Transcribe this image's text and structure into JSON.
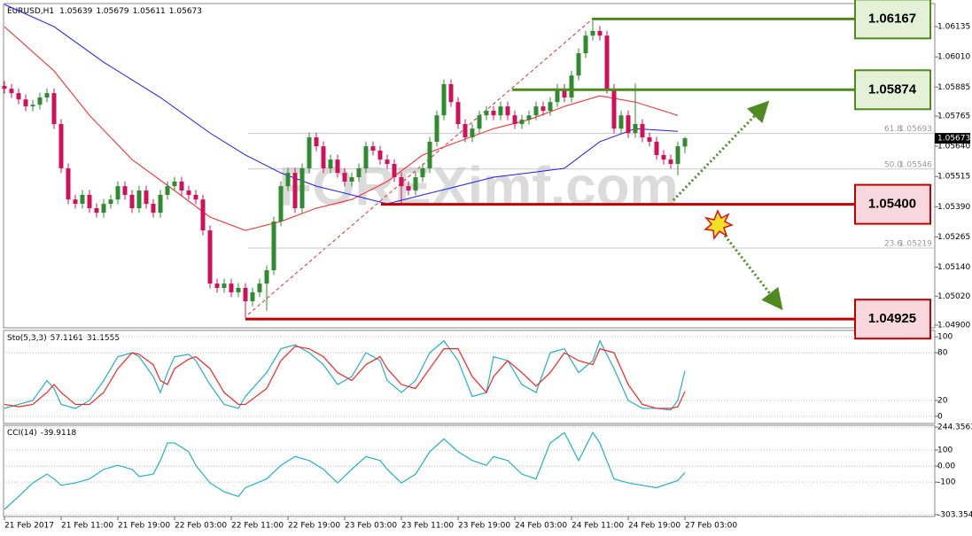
{
  "chart_data": {
    "type": "candlestick",
    "symbol": "EURUSD,H1",
    "watermark": "FOREXimf.com",
    "up_color": "#2e8b2e",
    "down_color": "#d0105a",
    "xlim": [
      -0.125,
      131.25
    ],
    "xticks": [
      {
        "value": 0,
        "label": "21 Feb 2017"
      },
      {
        "value": 8,
        "label": "21 Feb 11:00"
      },
      {
        "value": 16,
        "label": "21 Feb 19:00"
      },
      {
        "value": 24,
        "label": "22 Feb 03:00"
      },
      {
        "value": 32,
        "label": "22 Feb 11:00"
      },
      {
        "value": 40,
        "label": "22 Feb 19:00"
      },
      {
        "value": 48,
        "label": "23 Feb 03:00"
      },
      {
        "value": 56,
        "label": "23 Feb 11:00"
      },
      {
        "value": 64,
        "label": "23 Feb 19:00"
      },
      {
        "value": 72,
        "label": "24 Feb 03:00"
      },
      {
        "value": 80,
        "label": "24 Feb 11:00"
      },
      {
        "value": 88,
        "label": "24 Feb 19:00"
      },
      {
        "value": 96,
        "label": "27 Feb 03:00"
      }
    ],
    "ylim": [
      1.04889,
      1.06227
    ],
    "yticks": [
      1.06135,
      {
        "value": 1.0601,
        "label": "1.06010"
      },
      1.05885,
      1.05765,
      {
        "value": 1.0564,
        "label": "1.05640"
      },
      1.05515,
      {
        "value": 1.0539,
        "label": "1.05390"
      },
      1.05265,
      {
        "value": 1.0514,
        "label": "1.05140"
      },
      {
        "value": 1.0502,
        "label": "1.05020"
      },
      {
        "value": 1.049,
        "label": "1.04900"
      }
    ],
    "candles": [
      [
        1.0589,
        1.0591,
        1.05858,
        1.05878
      ],
      [
        1.05878,
        1.05898,
        1.0584,
        1.0586
      ],
      [
        1.0586,
        1.0588,
        1.05814,
        1.05834
      ],
      [
        1.05834,
        1.05854,
        1.05785,
        1.05805
      ],
      [
        1.05805,
        1.05832,
        1.05785,
        1.05812
      ],
      [
        1.05812,
        1.05862,
        1.05792,
        1.05842
      ],
      [
        1.05842,
        1.0588,
        1.05822,
        1.0586
      ],
      [
        1.0586,
        1.0588,
        1.05712,
        1.05732
      ],
      [
        1.05732,
        1.05752,
        1.05529,
        1.05549
      ],
      [
        1.05549,
        1.05569,
        1.054,
        1.0542
      ],
      [
        1.0542,
        1.0544,
        1.05382,
        1.05402
      ],
      [
        1.05402,
        1.05459,
        1.05382,
        1.05439
      ],
      [
        1.05439,
        1.05459,
        1.05364,
        1.05384
      ],
      [
        1.05384,
        1.05404,
        1.05345,
        1.05365
      ],
      [
        1.05365,
        1.05422,
        1.05345,
        1.05402
      ],
      [
        1.05402,
        1.0544,
        1.05382,
        1.0542
      ],
      [
        1.0542,
        1.05495,
        1.054,
        1.05475
      ],
      [
        1.05475,
        1.05495,
        1.05419,
        1.05439
      ],
      [
        1.05439,
        1.05459,
        1.05364,
        1.05384
      ],
      [
        1.05384,
        1.05477,
        1.05364,
        1.05457
      ],
      [
        1.05457,
        1.05477,
        1.05382,
        1.05402
      ],
      [
        1.05402,
        1.05422,
        1.05345,
        1.05365
      ],
      [
        1.05365,
        1.05459,
        1.05345,
        1.05439
      ],
      [
        1.05439,
        1.05495,
        1.05419,
        1.05475
      ],
      [
        1.05475,
        1.05514,
        1.05455,
        1.05494
      ],
      [
        1.05494,
        1.05514,
        1.05437,
        1.05457
      ],
      [
        1.05457,
        1.05477,
        1.05419,
        1.05439
      ],
      [
        1.05439,
        1.05459,
        1.054,
        1.0542
      ],
      [
        1.0542,
        1.0544,
        1.05272,
        1.05292
      ],
      [
        1.05292,
        1.05312,
        1.05052,
        1.05072
      ],
      [
        1.05072,
        1.05092,
        1.05034,
        1.05054
      ],
      [
        1.05054,
        1.05092,
        1.05034,
        1.05072
      ],
      [
        1.05072,
        1.05092,
        1.05016,
        1.05036
      ],
      [
        1.05036,
        1.05074,
        1.05016,
        1.05054
      ],
      [
        1.05054,
        1.05074,
        1.0493,
        1.04999
      ],
      [
        1.04999,
        1.05056,
        1.04979,
        1.05036
      ],
      [
        1.05036,
        1.05092,
        1.05016,
        1.05072
      ],
      [
        1.05072,
        1.05147,
        1.0496,
        1.05127
      ],
      [
        1.05127,
        1.05349,
        1.05107,
        1.05329
      ],
      [
        1.05329,
        1.05495,
        1.05309,
        1.05475
      ],
      [
        1.05475,
        1.0555,
        1.05455,
        1.0553
      ],
      [
        1.0553,
        1.0555,
        1.05364,
        1.05384
      ],
      [
        1.05384,
        1.05569,
        1.05364,
        1.05549
      ],
      [
        1.05549,
        1.05697,
        1.05529,
        1.05677
      ],
      [
        1.05677,
        1.05697,
        1.0562,
        1.0564
      ],
      [
        1.0564,
        1.0566,
        1.05529,
        1.05549
      ],
      [
        1.05549,
        1.05605,
        1.05529,
        1.05585
      ],
      [
        1.05585,
        1.05605,
        1.0551,
        1.0553
      ],
      [
        1.0553,
        1.0555,
        1.05474,
        1.05494
      ],
      [
        1.05494,
        1.05532,
        1.05474,
        1.05512
      ],
      [
        1.05512,
        1.05569,
        1.05492,
        1.05549
      ],
      [
        1.05549,
        1.0566,
        1.05529,
        1.0564
      ],
      [
        1.0564,
        1.0566,
        1.05602,
        1.05622
      ],
      [
        1.05622,
        1.05642,
        1.05565,
        1.05585
      ],
      [
        1.05585,
        1.05605,
        1.05547,
        1.05567
      ],
      [
        1.05567,
        1.05587,
        1.05492,
        1.05512
      ],
      [
        1.05512,
        1.05532,
        1.054,
        1.05475
      ],
      [
        1.05475,
        1.05495,
        1.05437,
        1.05457
      ],
      [
        1.05457,
        1.05532,
        1.05437,
        1.05512
      ],
      [
        1.05512,
        1.05569,
        1.05492,
        1.05549
      ],
      [
        1.05549,
        1.05679,
        1.05529,
        1.05659
      ],
      [
        1.05659,
        1.05788,
        1.05639,
        1.05768
      ],
      [
        1.05768,
        1.05917,
        1.05748,
        1.05897
      ],
      [
        1.05897,
        1.05917,
        1.05803,
        1.05823
      ],
      [
        1.05823,
        1.05843,
        1.05712,
        1.05732
      ],
      [
        1.05732,
        1.05752,
        1.05657,
        1.05677
      ],
      [
        1.05677,
        1.05733,
        1.05657,
        1.05713
      ],
      [
        1.05713,
        1.05788,
        1.05693,
        1.05768
      ],
      [
        1.05768,
        1.05807,
        1.05748,
        1.05787
      ],
      [
        1.05787,
        1.05807,
        1.05748,
        1.05768
      ],
      [
        1.05768,
        1.05825,
        1.05748,
        1.05805
      ],
      [
        1.05805,
        1.05825,
        1.05748,
        1.05768
      ],
      [
        1.05768,
        1.05788,
        1.05712,
        1.05732
      ],
      [
        1.05732,
        1.0577,
        1.05712,
        1.0575
      ],
      [
        1.0575,
        1.05788,
        1.0573,
        1.05768
      ],
      [
        1.05768,
        1.05825,
        1.05748,
        1.05805
      ],
      [
        1.05805,
        1.05825,
        1.05767,
        1.05787
      ],
      [
        1.05787,
        1.05843,
        1.05767,
        1.05823
      ],
      [
        1.05823,
        1.05898,
        1.05803,
        1.05878
      ],
      [
        1.05878,
        1.05898,
        1.05822,
        1.05842
      ],
      [
        1.05842,
        1.05953,
        1.05822,
        1.05933
      ],
      [
        1.05933,
        1.06045,
        1.05913,
        1.06025
      ],
      [
        1.06025,
        1.06118,
        1.06005,
        1.06098
      ],
      [
        1.06098,
        1.0616,
        1.06078,
        1.06117
      ],
      [
        1.06117,
        1.06137,
        1.06078,
        1.06098
      ],
      [
        1.06098,
        1.06118,
        1.05858,
        1.05878
      ],
      [
        1.05878,
        1.05898,
        1.05693,
        1.05713
      ],
      [
        1.05713,
        1.05788,
        1.05693,
        1.05768
      ],
      [
        1.05768,
        1.05788,
        1.05675,
        1.05695
      ],
      [
        1.05695,
        1.059,
        1.05675,
        1.05732
      ],
      [
        1.05732,
        1.05752,
        1.05657,
        1.05677
      ],
      [
        1.05677,
        1.05697,
        1.05639,
        1.05659
      ],
      [
        1.05659,
        1.05679,
        1.05584,
        1.05604
      ],
      [
        1.05604,
        1.05624,
        1.05565,
        1.05585
      ],
      [
        1.05585,
        1.05605,
        1.05547,
        1.05567
      ],
      [
        1.05567,
        1.0566,
        1.0552,
        1.0564
      ],
      [
        1.05639,
        1.05679,
        1.05611,
        1.05673
      ]
    ],
    "moving_averages": [
      {
        "color": "#ff2020",
        "x": [
          0,
          7,
          12,
          18,
          24,
          29,
          34,
          39,
          44,
          49,
          54,
          59,
          64,
          69,
          74,
          79,
          84,
          89,
          95
        ],
        "values": [
          1.06135,
          1.05952,
          1.05768,
          1.05585,
          1.05457,
          1.05347,
          1.05292,
          1.05329,
          1.05384,
          1.0542,
          1.05494,
          1.05604,
          1.05659,
          1.05713,
          1.0575,
          1.05805,
          1.05849,
          1.05823,
          1.05768
        ]
      },
      {
        "color": "#1a1aff",
        "x": [
          0,
          7,
          14,
          22,
          29,
          34,
          39,
          44,
          49,
          54,
          59,
          64,
          69,
          74,
          79,
          84,
          89,
          95
        ],
        "values": [
          1.06227,
          1.06135,
          1.05988,
          1.05842,
          1.05695,
          1.05604,
          1.0553,
          1.05475,
          1.05439,
          1.05402,
          1.05439,
          1.05475,
          1.05512,
          1.0553,
          1.05549,
          1.05659,
          1.05713,
          1.05702
        ]
      }
    ],
    "fib_levels": [
      {
        "label": "61.8",
        "value": 1.05693
      },
      {
        "label": "50.0",
        "value": 1.05546
      },
      {
        "label": "23.6",
        "value": 1.05219
      }
    ],
    "levels": [
      {
        "value": 1.06167,
        "color": "#4e8a1e",
        "fill": "#e4f1d6"
      },
      {
        "value": 1.05874,
        "color": "#4e8a1e",
        "fill": "#e4f1d6"
      },
      {
        "value": 1.054,
        "label": "1.05400",
        "color": "#c00000",
        "fill": "#f8d8dc"
      },
      {
        "value": 1.04925,
        "color": "#c00000",
        "fill": "#f8d8dc"
      }
    ],
    "stochastic": {
      "title": "Sto(5,3,3)",
      "ylim": [
        -9,
        108
      ],
      "yticks": [
        100,
        80,
        20,
        0
      ],
      "x": [
        0,
        2,
        4,
        6,
        7,
        8,
        10,
        12,
        14,
        16,
        18,
        19,
        21,
        22,
        23,
        24,
        26,
        27,
        29,
        31,
        33,
        34,
        37,
        39,
        41,
        43,
        45,
        47,
        49,
        51,
        53,
        54,
        56,
        58,
        60,
        62,
        64,
        66,
        68,
        69,
        71,
        73,
        75,
        77,
        79,
        81,
        83,
        84,
        86,
        88,
        90,
        92,
        94,
        95,
        96
      ],
      "series": [
        {
          "color": "#20b0c8",
          "values": [
            10,
            15,
            20,
            45,
            35,
            15,
            10,
            20,
            45,
            75,
            80,
            75,
            50,
            30,
            55,
            75,
            78,
            70,
            40,
            15,
            10,
            25,
            55,
            85,
            90,
            80,
            65,
            40,
            50,
            80,
            70,
            45,
            30,
            45,
            80,
            95,
            70,
            25,
            30,
            75,
            70,
            40,
            30,
            80,
            85,
            55,
            70,
            95,
            60,
            20,
            10,
            10,
            8,
            20,
            57.1161
          ]
        },
        {
          "color": "#ff2020",
          "values": [
            15,
            12,
            15,
            30,
            40,
            30,
            15,
            15,
            30,
            60,
            80,
            78,
            65,
            45,
            40,
            60,
            72,
            75,
            60,
            30,
            15,
            15,
            35,
            70,
            88,
            85,
            75,
            55,
            45,
            65,
            75,
            60,
            40,
            35,
            60,
            85,
            85,
            50,
            30,
            50,
            70,
            55,
            38,
            55,
            80,
            70,
            65,
            85,
            80,
            40,
            15,
            10,
            10,
            12,
            31.1555
          ]
        }
      ]
    },
    "cci": {
      "title": "CCI(14)",
      "ylim": [
        -315,
        250
      ],
      "yticks": [
        244.3563,
        100,
        {
          "value": 0,
          "label": "0.00"
        },
        -100,
        -303.354
      ],
      "color": "#20b0c8",
      "x": [
        0,
        2,
        4,
        6,
        7,
        8,
        10,
        12,
        14,
        16,
        18,
        19,
        21,
        22,
        23,
        24,
        26,
        27,
        29,
        31,
        33,
        34,
        37,
        39,
        41,
        43,
        45,
        47,
        49,
        51,
        53,
        54,
        56,
        58,
        60,
        62,
        64,
        66,
        68,
        69,
        71,
        73,
        75,
        77,
        79,
        81,
        83,
        84,
        86,
        88,
        90,
        92,
        94,
        95,
        96
      ],
      "values": [
        -270,
        -190,
        -105,
        -50,
        -80,
        -120,
        -105,
        -80,
        -20,
        5,
        -20,
        -65,
        -50,
        35,
        145,
        145,
        90,
        5,
        -105,
        -160,
        -190,
        -135,
        -80,
        5,
        60,
        35,
        -20,
        -105,
        -20,
        60,
        35,
        -20,
        -105,
        -50,
        90,
        170,
        90,
        35,
        5,
        60,
        35,
        -50,
        -80,
        145,
        210,
        35,
        210,
        145,
        -80,
        -105,
        -120,
        -135,
        -105,
        -90,
        -39.9118
      ]
    }
  }
}
